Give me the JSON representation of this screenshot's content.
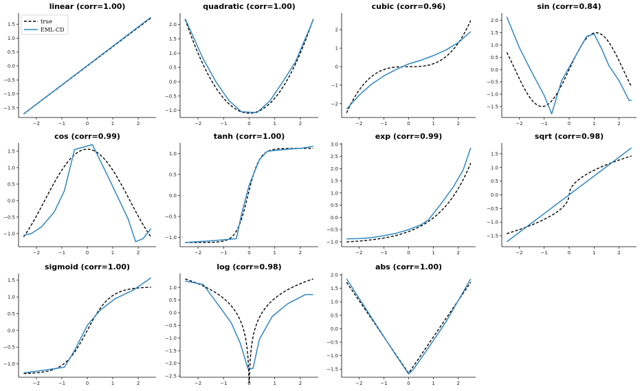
{
  "legend": {
    "entries": [
      {
        "label": "true",
        "color": "#000000",
        "style": "dashed"
      },
      {
        "label": "EML-CD",
        "color": "#2e86c1",
        "style": "solid"
      }
    ],
    "placement": "upper-left of first panel"
  },
  "chart_data": [
    {
      "type": "line",
      "title": "linear  (corr=1.00)",
      "xlim": [
        -2.7,
        2.7
      ],
      "ylim": [
        -1.85,
        1.9
      ],
      "xticks": [
        -2,
        -1,
        0,
        1,
        2
      ],
      "yticks": [
        -1.5,
        -1.0,
        -0.5,
        0.0,
        0.5,
        1.0,
        1.5
      ],
      "true_fn": "linear",
      "eml_cd": {
        "x": [
          -2.5,
          2.5
        ],
        "y": [
          -1.72,
          1.75
        ]
      },
      "series": [
        {
          "name": "true"
        },
        {
          "name": "EML-CD"
        }
      ]
    },
    {
      "type": "line",
      "title": "quadratic  (corr=1.00)",
      "xlim": [
        -2.7,
        2.7
      ],
      "ylim": [
        -1.25,
        2.4
      ],
      "xticks": [
        -2,
        -1,
        0,
        1,
        2
      ],
      "yticks": [
        -1.0,
        -0.5,
        0.0,
        0.5,
        1.0,
        1.5,
        2.0
      ],
      "true_fn": "quadratic",
      "eml_cd": {
        "x": [
          -2.5,
          -1.8,
          -1.3,
          -0.8,
          -0.3,
          0.3,
          0.8,
          1.3,
          1.8,
          2.5
        ],
        "y": [
          2.2,
          0.8,
          0.0,
          -0.65,
          -1.05,
          -1.08,
          -0.68,
          -0.02,
          0.68,
          2.15
        ]
      },
      "series": [
        {
          "name": "true"
        },
        {
          "name": "EML-CD"
        }
      ]
    },
    {
      "type": "line",
      "title": "cubic  (corr=0.96)",
      "xlim": [
        -2.7,
        2.7
      ],
      "ylim": [
        -2.75,
        2.9
      ],
      "xticks": [
        -2,
        -1,
        0,
        1,
        2
      ],
      "yticks": [
        -2,
        -1,
        0,
        1,
        2
      ],
      "true_fn": "cubic",
      "eml_cd": {
        "x": [
          -2.5,
          -2.0,
          -1.5,
          -1.0,
          -0.5,
          0.0,
          0.5,
          1.0,
          1.5,
          2.0,
          2.5
        ],
        "y": [
          -2.3,
          -1.55,
          -0.95,
          -0.5,
          -0.15,
          0.15,
          0.35,
          0.6,
          0.9,
          1.3,
          1.9
        ]
      },
      "series": [
        {
          "name": "true"
        },
        {
          "name": "EML-CD"
        }
      ]
    },
    {
      "type": "line",
      "title": "sin  (corr=0.84)",
      "xlim": [
        -2.7,
        2.7
      ],
      "ylim": [
        -1.95,
        2.3
      ],
      "xticks": [
        -2,
        -1,
        0,
        1,
        2
      ],
      "yticks": [
        -1.5,
        -1.0,
        -0.5,
        0.0,
        0.5,
        1.0,
        1.5,
        2.0
      ],
      "true_fn": "sin",
      "eml_cd": {
        "x": [
          -2.5,
          -2.0,
          -1.5,
          -1.0,
          -0.7,
          -0.3,
          0.2,
          0.7,
          1.0,
          1.3,
          1.6,
          2.0,
          2.4,
          2.5
        ],
        "y": [
          2.15,
          0.9,
          -0.1,
          -1.05,
          -1.8,
          -0.45,
          0.45,
          1.35,
          1.45,
          0.85,
          0.15,
          -0.45,
          -1.25,
          -1.25
        ]
      },
      "series": [
        {
          "name": "true"
        },
        {
          "name": "EML-CD"
        }
      ]
    },
    {
      "type": "line",
      "title": "cos  (corr=0.99)",
      "xlim": [
        -2.7,
        2.7
      ],
      "ylim": [
        -1.4,
        1.75
      ],
      "xticks": [
        -2,
        -1,
        0,
        1,
        2
      ],
      "yticks": [
        -1.0,
        -0.5,
        0.0,
        0.5,
        1.0,
        1.5
      ],
      "true_fn": "cos",
      "eml_cd": {
        "x": [
          -2.5,
          -2.2,
          -1.8,
          -1.3,
          -0.9,
          -0.5,
          0.2,
          0.8,
          1.2,
          1.6,
          1.9,
          2.2,
          2.5
        ],
        "y": [
          -1.05,
          -1.0,
          -0.8,
          -0.35,
          0.3,
          1.55,
          1.7,
          0.75,
          0.1,
          -0.55,
          -1.25,
          -1.15,
          -0.85
        ]
      },
      "series": [
        {
          "name": "true"
        },
        {
          "name": "EML-CD"
        }
      ]
    },
    {
      "type": "line",
      "title": "tanh  (corr=1.00)",
      "xlim": [
        -2.7,
        2.7
      ],
      "ylim": [
        -1.22,
        1.25
      ],
      "xticks": [
        -2,
        -1,
        0,
        1,
        2
      ],
      "yticks": [
        -1.0,
        -0.5,
        0.0,
        0.5,
        1.0
      ],
      "true_fn": "tanh",
      "eml_cd": {
        "x": [
          -2.5,
          -1.5,
          -0.5,
          -0.3,
          0.0,
          0.4,
          0.7,
          1.0,
          1.5,
          2.0,
          2.5
        ],
        "y": [
          -1.12,
          -1.08,
          -1.03,
          -0.45,
          0.25,
          0.85,
          1.05,
          1.07,
          1.1,
          1.12,
          1.17
        ]
      },
      "series": [
        {
          "name": "true"
        },
        {
          "name": "EML-CD"
        }
      ]
    },
    {
      "type": "line",
      "title": "exp  (corr=0.99)",
      "xlim": [
        -2.7,
        2.7
      ],
      "ylim": [
        -1.2,
        3.05
      ],
      "xticks": [
        -2,
        -1,
        0,
        1,
        2
      ],
      "yticks": [
        -1.0,
        -0.5,
        0.0,
        0.5,
        1.0,
        1.5,
        2.0,
        2.5,
        3.0
      ],
      "true_fn": "exp",
      "eml_cd": {
        "x": [
          -2.5,
          -2.0,
          -1.5,
          -1.0,
          -0.5,
          0.0,
          0.5,
          0.8,
          1.3,
          1.8,
          2.2,
          2.5
        ],
        "y": [
          -0.88,
          -0.87,
          -0.83,
          -0.75,
          -0.65,
          -0.5,
          -0.3,
          -0.1,
          0.55,
          1.25,
          1.95,
          2.85
        ]
      },
      "series": [
        {
          "name": "true"
        },
        {
          "name": "EML-CD"
        }
      ]
    },
    {
      "type": "line",
      "title": "sqrt  (corr=0.98)",
      "xlim": [
        -2.7,
        2.7
      ],
      "ylim": [
        -1.9,
        1.9
      ],
      "xticks": [
        -2,
        -1,
        0,
        1,
        2
      ],
      "yticks": [
        -1.5,
        -1.0,
        -0.5,
        0.0,
        0.5,
        1.0,
        1.5
      ],
      "true_fn": "sqrt",
      "eml_cd": {
        "x": [
          -2.5,
          2.5
        ],
        "y": [
          -1.72,
          1.72
        ]
      },
      "series": [
        {
          "name": "true"
        },
        {
          "name": "EML-CD"
        }
      ]
    },
    {
      "type": "line",
      "title": "sigmoid  (corr=1.00)",
      "xlim": [
        -2.7,
        2.7
      ],
      "ylim": [
        -1.4,
        1.7
      ],
      "xticks": [
        -2,
        -1,
        0,
        1,
        2
      ],
      "yticks": [
        -1.0,
        -0.5,
        0.0,
        0.5,
        1.0,
        1.5
      ],
      "true_fn": "sigmoid",
      "eml_cd": {
        "x": [
          -2.5,
          -1.8,
          -0.9,
          -0.5,
          0.0,
          0.5,
          1.1,
          1.8,
          2.5
        ],
        "y": [
          -1.27,
          -1.2,
          -1.1,
          -0.6,
          0.15,
          0.6,
          0.95,
          1.2,
          1.57
        ]
      },
      "series": [
        {
          "name": "true"
        },
        {
          "name": "EML-CD"
        }
      ]
    },
    {
      "type": "line",
      "title": "log  (corr=0.98)",
      "xlim": [
        -2.7,
        2.7
      ],
      "ylim": [
        -2.55,
        1.55
      ],
      "xticks": [
        -2,
        -1,
        0,
        1,
        2
      ],
      "yticks": [
        -2.5,
        -2.0,
        -1.5,
        -1.0,
        -0.5,
        0.0,
        0.5,
        1.0
      ],
      "true_fn": "log",
      "eml_cd": {
        "x": [
          -2.5,
          -1.8,
          -1.2,
          -0.7,
          -0.35,
          -0.05,
          0.15,
          0.4,
          0.9,
          1.5,
          2.2,
          2.5
        ],
        "y": [
          1.25,
          1.12,
          0.3,
          -0.4,
          -1.2,
          -2.2,
          -2.2,
          -1.05,
          -0.15,
          0.35,
          0.72,
          0.72
        ]
      },
      "series": [
        {
          "name": "true"
        },
        {
          "name": "EML-CD"
        }
      ]
    },
    {
      "type": "line",
      "title": "abs  (corr=1.00)",
      "xlim": [
        -2.7,
        2.7
      ],
      "ylim": [
        -1.8,
        2.05
      ],
      "xticks": [
        -2,
        -1,
        0,
        1,
        2
      ],
      "yticks": [
        -1.5,
        -1.0,
        -0.5,
        0.0,
        0.5,
        1.0,
        1.5,
        2.0
      ],
      "true_fn": "abs",
      "eml_cd": {
        "x": [
          -2.5,
          -1.5,
          -0.5,
          0.0,
          0.2,
          0.8,
          1.5,
          2.5
        ],
        "y": [
          1.85,
          0.42,
          -1.0,
          -1.68,
          -1.5,
          -0.7,
          0.25,
          1.85
        ]
      },
      "series": [
        {
          "name": "true"
        },
        {
          "name": "EML-CD"
        }
      ]
    }
  ]
}
